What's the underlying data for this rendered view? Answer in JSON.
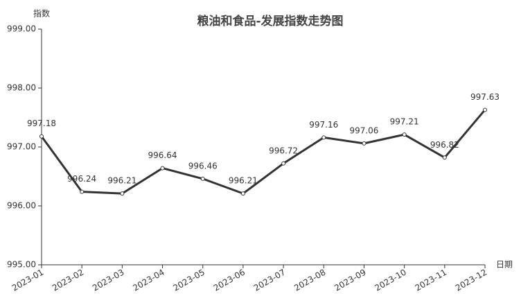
{
  "chart_data": {
    "type": "line",
    "title": "粮油和食品-发展指数走势图",
    "y_label": "指数",
    "x_label": "日期",
    "categories": [
      "2023-01",
      "2023-02",
      "2023-03",
      "2023-04",
      "2023-05",
      "2023-06",
      "2023-07",
      "2023-08",
      "2023-09",
      "2023-10",
      "2023-11",
      "2023-12"
    ],
    "values": [
      997.18,
      996.24,
      996.21,
      996.64,
      996.46,
      996.21,
      996.72,
      997.16,
      997.06,
      997.21,
      996.82,
      997.63
    ],
    "color": "#333333",
    "ylim": [
      995,
      999
    ],
    "yticks": [
      {
        "value": 995,
        "label": "995.00"
      },
      {
        "value": 996,
        "label": "996.00"
      },
      {
        "value": 997,
        "label": "997.00"
      },
      {
        "value": 998,
        "label": "998.00"
      },
      {
        "value": 999,
        "label": "999.00"
      }
    ],
    "grid": false
  }
}
